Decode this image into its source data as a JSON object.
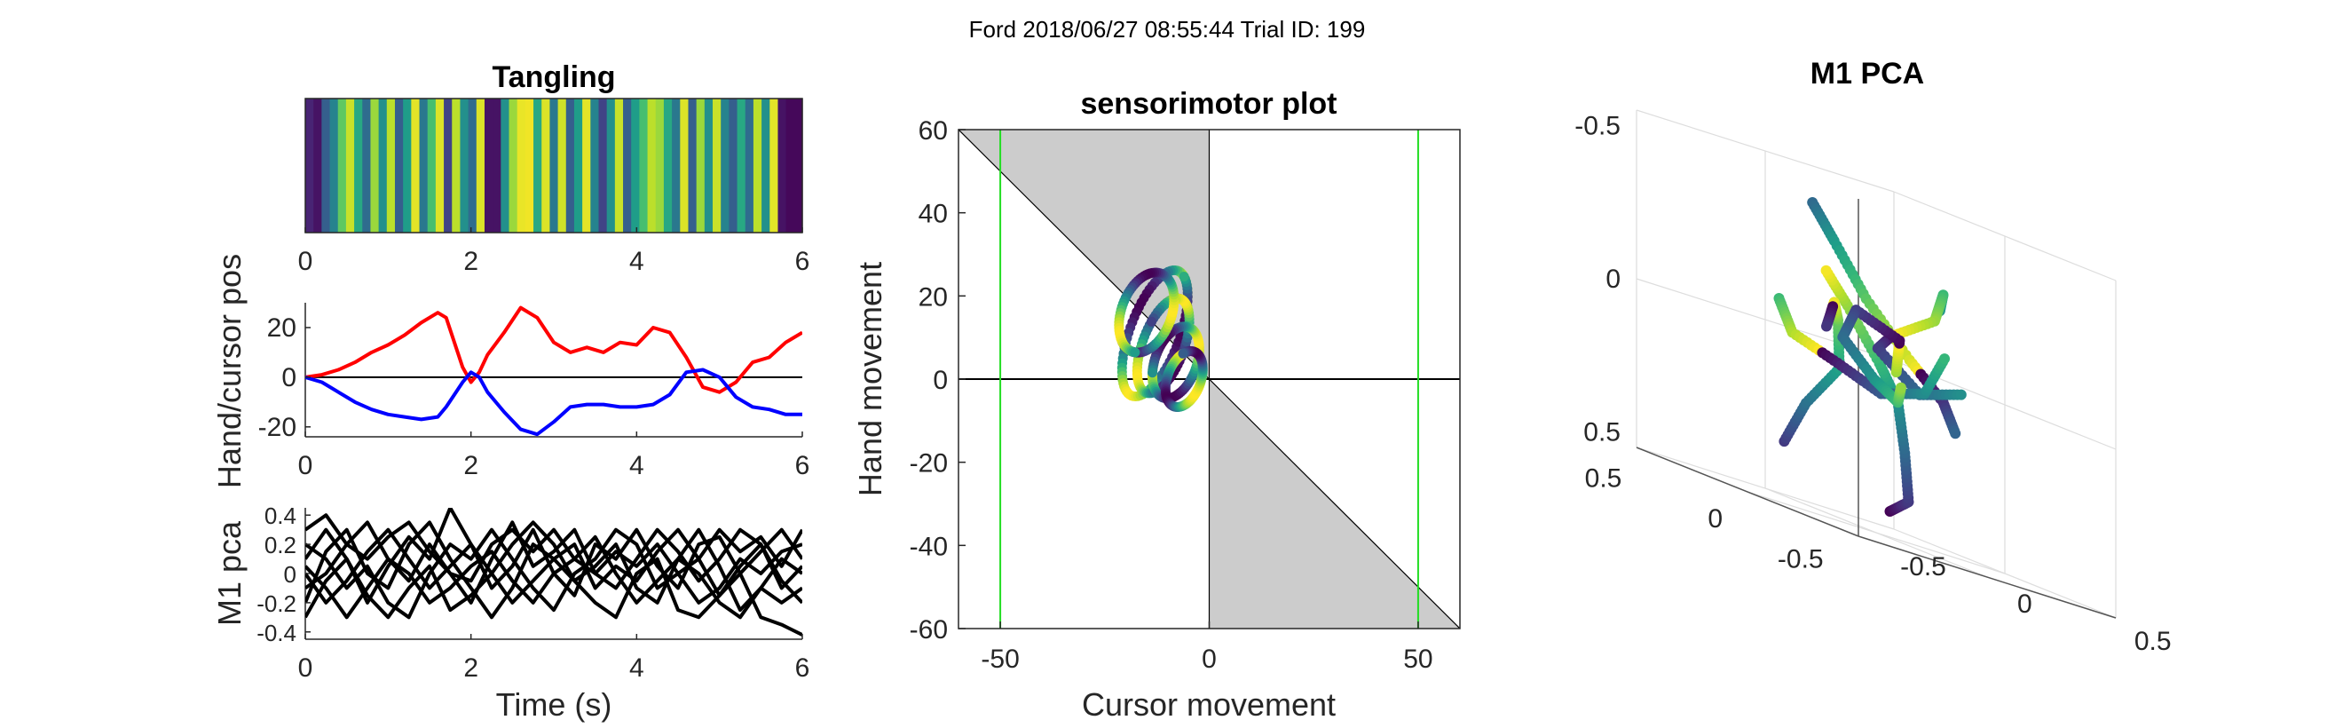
{
  "figure": {
    "suptitle": "Ford 2018/06/27 08:55:44 Trial ID: 199"
  },
  "chart_data": [
    {
      "id": "tangling",
      "type": "heatmap",
      "title": "Tangling",
      "colormap": "viridis",
      "xlim": [
        0,
        6
      ],
      "x_ticks": [
        0,
        2,
        4,
        6
      ],
      "x_tick_labels": [
        "0",
        "2",
        "4",
        "6"
      ],
      "values": [
        0.1,
        0.05,
        0.3,
        0.45,
        0.75,
        0.92,
        0.6,
        0.35,
        0.85,
        0.5,
        0.9,
        0.3,
        0.55,
        0.96,
        0.4,
        0.7,
        0.95,
        0.2,
        0.9,
        0.5,
        0.35,
        0.95,
        0.05,
        0.05,
        0.5,
        0.85,
        0.97,
        0.98,
        0.6,
        0.95,
        0.4,
        0.93,
        0.3,
        0.55,
        0.96,
        0.45,
        0.2,
        0.5,
        0.92,
        0.3,
        0.55,
        0.7,
        0.9,
        0.85,
        0.6,
        0.4,
        0.95,
        0.3,
        0.85,
        0.5,
        0.92,
        0.45,
        0.3,
        0.6,
        0.35,
        0.9,
        0.5,
        0.96,
        0.05,
        0.02,
        0.02
      ]
    },
    {
      "id": "hand-cursor",
      "type": "line",
      "ylabel": "Hand/cursor pos",
      "xlim": [
        0,
        6
      ],
      "ylim": [
        -24,
        30
      ],
      "x_ticks": [
        0,
        2,
        4,
        6
      ],
      "x_tick_labels": [
        "0",
        "2",
        "4",
        "6"
      ],
      "y_ticks": [
        -20,
        0,
        20
      ],
      "y_tick_labels": [
        "-20",
        "0",
        "20"
      ],
      "reference_line_y": 0,
      "x": [
        0,
        0.2,
        0.4,
        0.6,
        0.8,
        1.0,
        1.2,
        1.4,
        1.6,
        1.7,
        1.8,
        1.9,
        2.0,
        2.1,
        2.2,
        2.4,
        2.6,
        2.8,
        3.0,
        3.2,
        3.4,
        3.6,
        3.8,
        4.0,
        4.2,
        4.4,
        4.6,
        4.8,
        5.0,
        5.2,
        5.4,
        5.6,
        5.8,
        6.0
      ],
      "series": [
        {
          "color": "#ff0000",
          "values": [
            0,
            1,
            3,
            6,
            10,
            13,
            17,
            22,
            26,
            24,
            14,
            4,
            -2,
            2,
            9,
            18,
            28,
            24,
            14,
            10,
            12,
            10,
            14,
            13,
            20,
            18,
            8,
            -4,
            -6,
            -2,
            6,
            8,
            14,
            18
          ]
        },
        {
          "color": "#0000ff",
          "values": [
            0,
            -2,
            -6,
            -10,
            -13,
            -15,
            -16,
            -17,
            -16,
            -12,
            -7,
            -2,
            2,
            0,
            -6,
            -14,
            -21,
            -23,
            -18,
            -12,
            -11,
            -11,
            -12,
            -12,
            -11,
            -7,
            2,
            3,
            0,
            -8,
            -12,
            -13,
            -15,
            -15
          ]
        }
      ]
    },
    {
      "id": "m1-pca-traces",
      "type": "line",
      "xlabel": "Time (s)",
      "ylabel": "M1 pca",
      "xlim": [
        0,
        6
      ],
      "ylim": [
        -0.45,
        0.45
      ],
      "x_ticks": [
        0,
        2,
        4,
        6
      ],
      "x_tick_labels": [
        "0",
        "2",
        "4",
        "6"
      ],
      "y_ticks": [
        -0.4,
        -0.2,
        0,
        0.2,
        0.4
      ],
      "y_tick_labels": [
        "-0.4",
        "-0.2",
        "0",
        "0.2",
        "0.4"
      ],
      "x": [
        0,
        0.25,
        0.5,
        0.75,
        1.0,
        1.25,
        1.5,
        1.75,
        2.0,
        2.25,
        2.5,
        2.75,
        3.0,
        3.25,
        3.5,
        3.75,
        4.0,
        4.25,
        4.5,
        4.75,
        5.0,
        5.25,
        5.5,
        5.75,
        6.0
      ],
      "series": [
        {
          "color": "#000000",
          "values": [
            0.1,
            0.3,
            0.1,
            -0.2,
            0.05,
            0.25,
            0.1,
            0.45,
            0.2,
            -0.1,
            0.05,
            0.3,
            0.0,
            -0.15,
            0.2,
            0.1,
            0.3,
            0.05,
            -0.1,
            0.2,
            0.25,
            0.0,
            0.15,
            0.3,
            0.1
          ]
        },
        {
          "color": "#000000",
          "values": [
            -0.1,
            0.0,
            0.2,
            0.35,
            0.1,
            -0.05,
            0.2,
            0.0,
            -0.2,
            0.1,
            0.35,
            0.05,
            0.15,
            0.3,
            0.0,
            -0.1,
            0.1,
            0.3,
            0.15,
            -0.05,
            0.1,
            0.3,
            0.2,
            -0.1,
            0.05
          ]
        },
        {
          "color": "#000000",
          "values": [
            0.0,
            -0.2,
            -0.05,
            0.15,
            0.3,
            0.1,
            -0.1,
            0.05,
            0.2,
            0.0,
            -0.2,
            -0.05,
            0.1,
            0.2,
            -0.1,
            0.05,
            -0.05,
            0.15,
            0.3,
            0.1,
            -0.15,
            0.05,
            0.2,
            -0.05,
            -0.2
          ]
        },
        {
          "color": "#000000",
          "values": [
            0.2,
            0.1,
            -0.1,
            0.05,
            -0.2,
            -0.3,
            0.0,
            0.2,
            0.1,
            0.3,
            0.1,
            -0.1,
            -0.25,
            0.0,
            0.1,
            0.3,
            0.2,
            -0.1,
            0.0,
            -0.2,
            -0.1,
            0.1,
            0.0,
            0.15,
            0.2
          ]
        },
        {
          "color": "#000000",
          "values": [
            -0.2,
            0.15,
            0.3,
            0.0,
            -0.1,
            0.2,
            0.35,
            0.1,
            -0.1,
            -0.3,
            -0.1,
            0.2,
            0.1,
            -0.05,
            0.05,
            0.2,
            -0.1,
            -0.2,
            0.1,
            0.3,
            0.05,
            -0.25,
            -0.1,
            0.1,
            0.0
          ]
        },
        {
          "color": "#000000",
          "values": [
            0.05,
            -0.1,
            -0.3,
            -0.1,
            0.1,
            0.0,
            -0.2,
            -0.1,
            0.05,
            0.15,
            -0.05,
            -0.2,
            0.0,
            0.1,
            0.25,
            0.0,
            -0.2,
            -0.05,
            0.1,
            0.0,
            -0.2,
            -0.3,
            -0.1,
            -0.2,
            -0.1
          ]
        },
        {
          "color": "#000000",
          "values": [
            -0.3,
            -0.05,
            0.1,
            -0.15,
            -0.3,
            -0.1,
            0.05,
            -0.25,
            -0.15,
            0.0,
            0.2,
            0.35,
            0.2,
            -0.05,
            -0.2,
            -0.3,
            0.0,
            0.1,
            -0.25,
            -0.3,
            -0.15,
            0.0,
            -0.3,
            -0.35,
            -0.42
          ]
        },
        {
          "color": "#000000",
          "values": [
            0.3,
            0.4,
            0.2,
            0.1,
            0.25,
            0.35,
            0.15,
            0.0,
            -0.05,
            0.2,
            0.3,
            0.15,
            0.3,
            0.1,
            0.0,
            0.15,
            0.05,
            0.2,
            0.0,
            0.1,
            0.3,
            0.15,
            0.25,
            0.05,
            0.3
          ]
        }
      ]
    },
    {
      "id": "sensorimotor",
      "type": "scatter",
      "title": "sensorimotor plot",
      "xlabel": "Cursor movement",
      "ylabel": "Hand movement",
      "xlim": [
        -60,
        60
      ],
      "ylim": [
        -60,
        60
      ],
      "x_ticks": [
        -50,
        0,
        50
      ],
      "x_tick_labels": [
        "-50",
        "0",
        "50"
      ],
      "y_ticks": [
        -60,
        -40,
        -20,
        0,
        20,
        40,
        60
      ],
      "y_tick_labels": [
        "-60",
        "-40",
        "-20",
        "0",
        "20",
        "40",
        "60"
      ],
      "green_vertical_lines_x": [
        -50,
        50
      ],
      "shaded_color": "#cccccc",
      "loops": [
        {
          "cx": -13,
          "cy": 11,
          "rx": 6,
          "ry": 16,
          "turns": 1.2,
          "phase": 0.0
        },
        {
          "cx": -11,
          "cy": 8,
          "rx": 5,
          "ry": 12,
          "turns": 1.2,
          "phase": 1.5
        },
        {
          "cx": -8,
          "cy": 4,
          "rx": 5,
          "ry": 9,
          "turns": 1.1,
          "phase": 3.0
        },
        {
          "cx": -15,
          "cy": 16,
          "rx": 6,
          "ry": 10,
          "turns": 1.1,
          "phase": 4.2
        },
        {
          "cx": -6,
          "cy": 0,
          "rx": 4,
          "ry": 7,
          "turns": 1.0,
          "phase": 2.2
        }
      ]
    },
    {
      "id": "m1-pca-3d",
      "type": "scatter",
      "title": "M1 PCA",
      "axis_tick_labels": {
        "z": [
          "-0.5",
          "0",
          "0.5"
        ],
        "y_left": [
          "0.5",
          "0",
          "-0.5"
        ],
        "x_right": [
          "-0.5",
          "0",
          "0.5"
        ]
      },
      "strands": [
        {
          "points": [
            [
              -0.2,
              -0.3,
              -0.45
            ],
            [
              -0.12,
              -0.3,
              -0.4
            ],
            [
              -0.05,
              -0.2,
              -0.25
            ],
            [
              0.05,
              -0.05,
              -0.1
            ],
            [
              0.1,
              0.1,
              0.0
            ],
            [
              0.05,
              0.2,
              0.15
            ],
            [
              -0.05,
              0.2,
              0.25
            ]
          ]
        },
        {
          "points": [
            [
              -0.35,
              0.05,
              -0.35
            ],
            [
              -0.3,
              0.0,
              -0.2
            ],
            [
              -0.2,
              -0.05,
              -0.05
            ],
            [
              -0.12,
              0.05,
              0.1
            ],
            [
              -0.05,
              0.15,
              0.15
            ],
            [
              0.0,
              0.25,
              0.05
            ]
          ]
        },
        {
          "points": [
            [
              -0.1,
              0.2,
              0.45
            ],
            [
              -0.05,
              0.15,
              0.35
            ],
            [
              0.0,
              0.05,
              0.2
            ],
            [
              0.1,
              -0.05,
              0.05
            ],
            [
              0.2,
              -0.1,
              -0.05
            ],
            [
              0.3,
              -0.05,
              -0.15
            ]
          ]
        },
        {
          "points": [
            [
              0.1,
              -0.2,
              0.25
            ],
            [
              0.2,
              -0.1,
              0.3
            ],
            [
              0.25,
              0.0,
              0.2
            ],
            [
              0.15,
              0.1,
              0.1
            ],
            [
              0.05,
              0.05,
              0.05
            ],
            [
              0.1,
              -0.1,
              -0.05
            ],
            [
              0.25,
              -0.15,
              0.0
            ]
          ]
        },
        {
          "points": [
            [
              -0.2,
              0.25,
              0.1
            ],
            [
              -0.1,
              0.3,
              0.0
            ],
            [
              0.05,
              0.25,
              -0.05
            ],
            [
              0.15,
              0.15,
              -0.1
            ],
            [
              0.25,
              0.05,
              -0.05
            ],
            [
              0.3,
              0.0,
              0.1
            ]
          ]
        },
        {
          "points": [
            [
              0.0,
              -0.1,
              0.0
            ],
            [
              0.1,
              0.0,
              0.1
            ],
            [
              0.0,
              0.1,
              0.15
            ],
            [
              -0.1,
              0.05,
              0.05
            ],
            [
              -0.05,
              -0.05,
              -0.05
            ],
            [
              0.05,
              -0.05,
              -0.1
            ],
            [
              0.15,
              0.05,
              -0.05
            ]
          ]
        }
      ]
    }
  ]
}
